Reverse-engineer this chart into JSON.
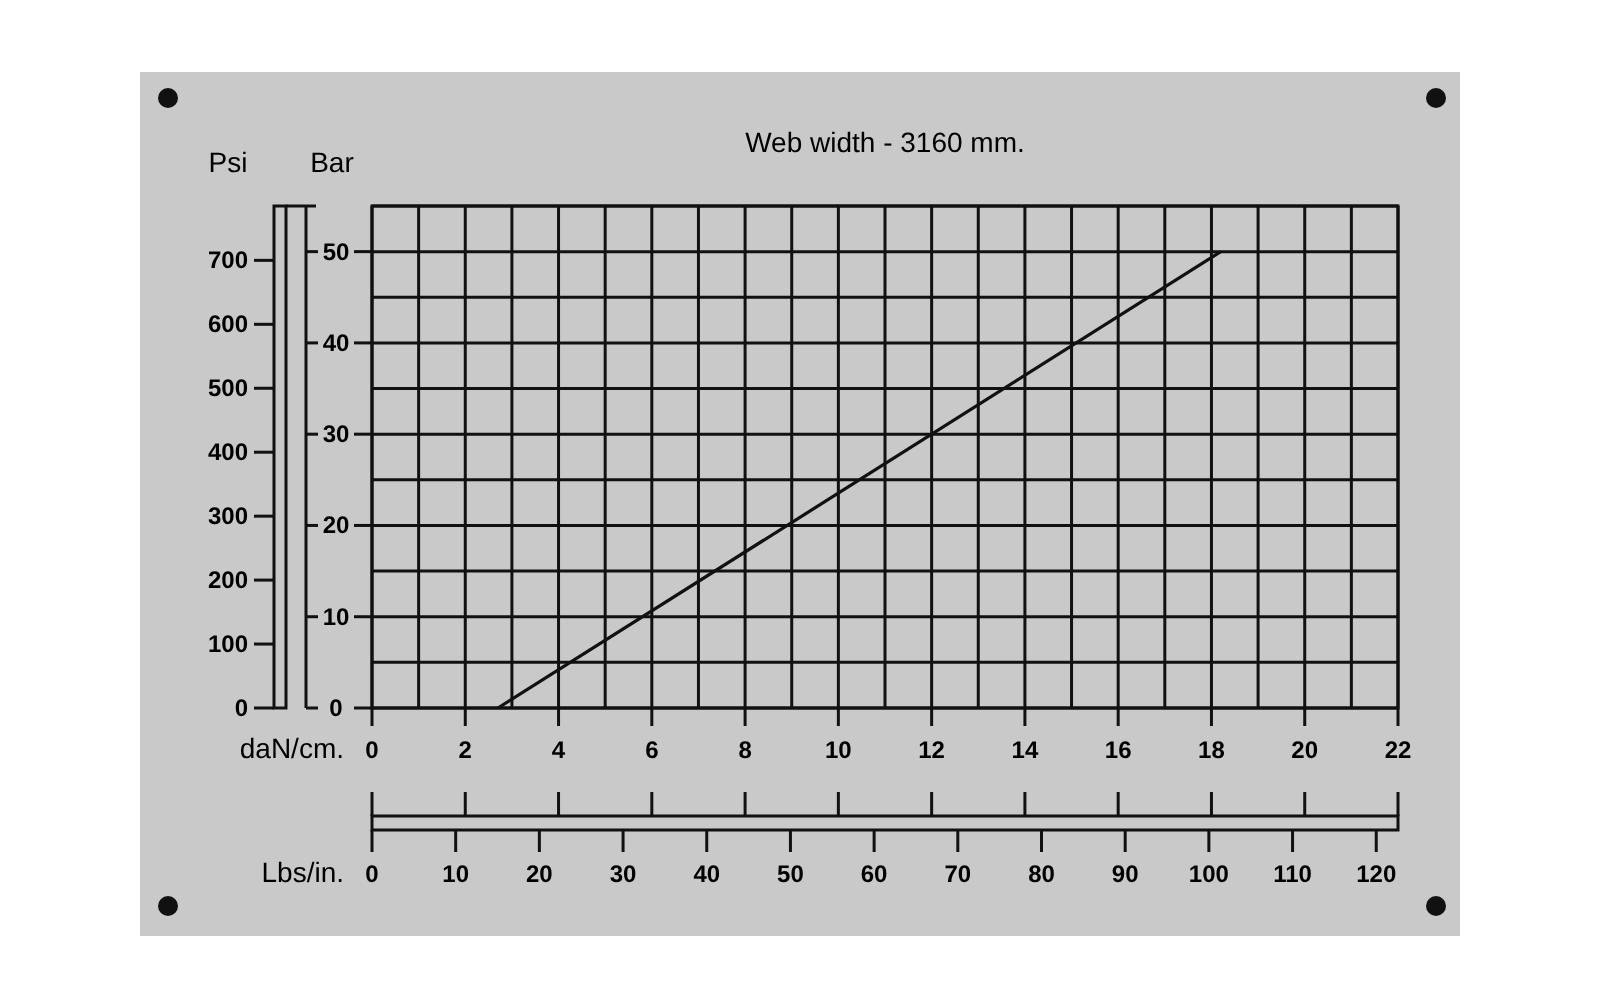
{
  "chart_data": {
    "type": "line",
    "title": "Web width - 3160 mm.",
    "xlabel": "daN/cm.",
    "ylabel": "Bar",
    "y2label": "Psi",
    "x2label": "Lbs/in.",
    "xlim": [
      0,
      22
    ],
    "xticks": [
      0,
      {
        "value": 1,
        "label": null
      },
      2,
      {
        "value": 3,
        "label": null
      },
      4,
      {
        "value": 5,
        "label": null
      },
      6,
      {
        "value": 7,
        "label": null
      },
      8,
      {
        "value": 9,
        "label": null
      },
      10,
      {
        "value": 11,
        "label": null
      },
      12,
      {
        "value": 13,
        "label": null
      },
      14,
      {
        "value": 15,
        "label": null
      },
      16,
      {
        "value": 17,
        "label": null
      },
      18,
      {
        "value": 19,
        "label": null
      },
      20,
      {
        "value": 21,
        "label": null
      },
      22
    ],
    "ylim": [
      0,
      55
    ],
    "yticks": [
      0,
      {
        "value": 5,
        "label": null
      },
      10,
      {
        "value": 15,
        "label": null
      },
      20,
      {
        "value": 25,
        "label": null
      },
      30,
      {
        "value": 35,
        "label": null
      },
      40,
      {
        "value": 45,
        "label": null
      },
      50,
      {
        "value": 55,
        "label": null
      }
    ],
    "y2lim": [
      0,
      785
    ],
    "y2ticks": [
      0,
      100,
      200,
      300,
      400,
      500,
      600,
      700
    ],
    "x2lim": [
      0,
      122.6
    ],
    "x2ticks": [
      0,
      10,
      20,
      30,
      40,
      50,
      60,
      70,
      80,
      90,
      100,
      110,
      120
    ],
    "grid": true,
    "marker": "none",
    "line_style": "solid",
    "series": [
      {
        "color": "#111111",
        "x": [
          2.7,
          18.2
        ],
        "values": [
          0,
          50
        ]
      }
    ]
  }
}
